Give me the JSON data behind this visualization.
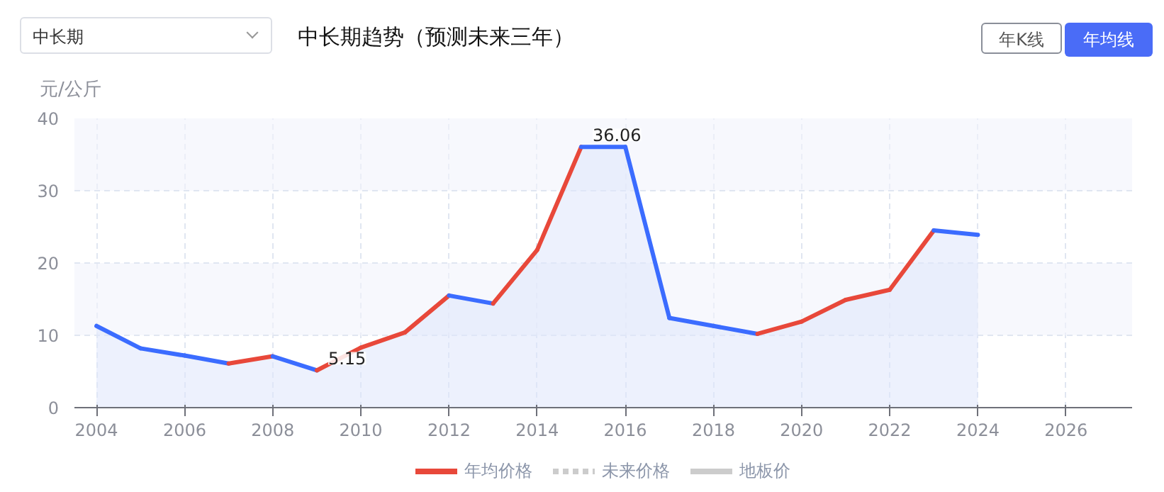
{
  "chart_data": {
    "type": "area",
    "title": "中长期趋势（预测未来三年）",
    "ylabel": "元/公斤",
    "annotations": [
      "中长期",
      "年K线",
      "年均线"
    ],
    "xlim": [
      2003.5,
      2027.5
    ],
    "xticks": [
      2004,
      2006,
      2008,
      2010,
      2012,
      2014,
      2016,
      2018,
      2020,
      2022,
      2024,
      2026
    ],
    "ylim": [
      0,
      40
    ],
    "yticks": [
      0,
      10,
      20,
      30,
      40
    ],
    "grid": true,
    "legend": "bottom",
    "line_style": "solid",
    "series": [
      {
        "name": "年均价格",
        "color": "#e8483a",
        "x": [
          2004,
          2005,
          2006,
          2007,
          2008,
          2009,
          2010,
          2011,
          2012,
          2013,
          2014,
          2015,
          2016,
          2017,
          2018,
          2019,
          2020,
          2021,
          2022,
          2023,
          2024
        ],
        "values": [
          11.3,
          8.2,
          7.2,
          6.1,
          7.1,
          5.15,
          8.3,
          10.4,
          15.5,
          14.4,
          21.8,
          36.06,
          36.06,
          12.4,
          11.3,
          10.2,
          11.9,
          14.9,
          16.3,
          24.5,
          23.9
        ],
        "colors": [
          "#3b6cff",
          "#3b6cff",
          "#3b6cff",
          "#3b6cff",
          "#e8483a",
          "#3b6cff",
          "#e8483a",
          "#e8483a",
          "#e8483a",
          "#3b6cff",
          "#e8483a",
          "#e8483a",
          "#3b6cff",
          "#3b6cff",
          "#3b6cff",
          "#3b6cff",
          "#e8483a",
          "#e8483a",
          "#e8483a",
          "#e8483a",
          "#3b6cff"
        ],
        "value_labels": [
          null,
          null,
          null,
          null,
          null,
          "5.15",
          null,
          null,
          null,
          null,
          null,
          "36.06",
          null,
          null,
          null,
          null,
          null,
          null,
          null,
          null,
          null
        ]
      },
      {
        "name": "未来价格",
        "color": "#cccccc",
        "type": "line",
        "line_style": "dashed"
      },
      {
        "name": "地板价",
        "color": "#cccccc",
        "type": "line"
      }
    ]
  }
}
